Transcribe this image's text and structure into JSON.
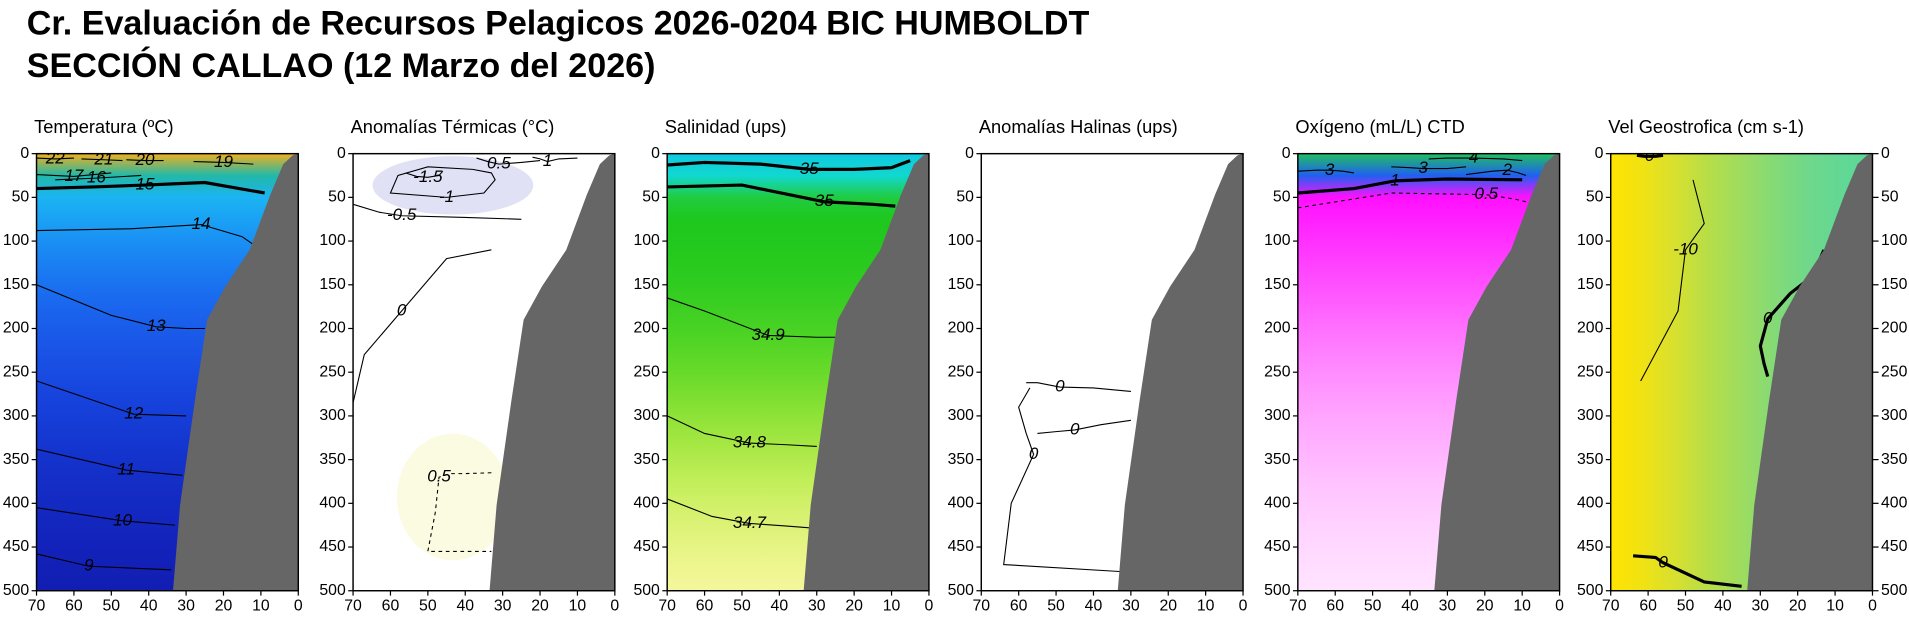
{
  "title_lines": [
    "Cr. Evaluación de Recursos Pelagicos 2026-0204 BIC HUMBOLDT",
    "SECCIÓN CALLAO (12 Marzo del 2026)"
  ],
  "bottom": {
    "x": [
      0,
      1.5,
      4,
      7.5,
      13,
      19.5,
      24.4,
      27.7,
      31.6,
      33.5,
      0
    ],
    "y": [
      0,
      2,
      12,
      47,
      110,
      152,
      190,
      284,
      402,
      500,
      500
    ]
  },
  "chart_data": [
    {
      "type": "contour",
      "title": "Temperatura (ºC)",
      "xlim": [
        70,
        0
      ],
      "ylim": [
        500,
        0
      ],
      "xticks": [
        70,
        60,
        50,
        40,
        30,
        20,
        10,
        0
      ],
      "yticks": [
        0,
        50,
        100,
        150,
        200,
        250,
        300,
        350,
        400,
        450,
        500
      ],
      "gradient": "vertical",
      "colors": [
        "#f2b01e",
        "#22b8a8",
        "#1cb4f2",
        "#1aa2f4",
        "#1a90f4",
        "#1a80f2",
        "#1a72f0",
        "#1a66ee",
        "#1a5cea",
        "#1a54e6",
        "#184ce2",
        "#1744de",
        "#163ed8",
        "#1538d2",
        "#1432cc",
        "#142ec6",
        "#132ac2",
        "#1326be",
        "#1222ba",
        "#1220b6",
        "#121eb2"
      ],
      "contours": [
        {
          "level": 22,
          "x": [
            70,
            65,
            60
          ],
          "y": [
            5,
            6,
            5
          ]
        },
        {
          "level": 21,
          "x": [
            58,
            52,
            47
          ],
          "y": [
            6,
            7,
            8
          ]
        },
        {
          "level": 20,
          "x": [
            46,
            41,
            36
          ],
          "y": [
            7,
            8,
            8
          ]
        },
        {
          "level": 19,
          "x": [
            28,
            20,
            12
          ],
          "y": [
            9,
            10,
            12
          ]
        },
        {
          "level": 17,
          "x": [
            70,
            60,
            50
          ],
          "y": [
            24,
            26,
            22
          ]
        },
        {
          "level": 16,
          "x": [
            65,
            54,
            42
          ],
          "y": [
            30,
            28,
            25
          ]
        },
        {
          "level": 15,
          "thick": true,
          "x": [
            70,
            55,
            41,
            25,
            9
          ],
          "y": [
            40,
            38,
            36,
            33,
            45
          ]
        },
        {
          "level": 14,
          "x": [
            70,
            45,
            26,
            15,
            11
          ],
          "y": [
            88,
            86,
            81,
            95,
            107
          ]
        },
        {
          "level": 13,
          "x": [
            70,
            50,
            38,
            30,
            25
          ],
          "y": [
            150,
            185,
            198,
            200,
            200
          ]
        },
        {
          "level": 12,
          "x": [
            70,
            44,
            30
          ],
          "y": [
            260,
            298,
            300
          ]
        },
        {
          "level": 11,
          "x": [
            70,
            46,
            31
          ],
          "y": [
            338,
            362,
            368
          ]
        },
        {
          "level": 10,
          "x": [
            70,
            47,
            33
          ],
          "y": [
            405,
            420,
            425
          ]
        },
        {
          "level": 9,
          "x": [
            70,
            56,
            34
          ],
          "y": [
            458,
            472,
            476
          ]
        }
      ]
    },
    {
      "type": "contour",
      "title": "Anomalías Térmicas (°C)",
      "xlim": [
        70,
        0
      ],
      "ylim": [
        500,
        0
      ],
      "xticks": [
        70,
        60,
        50,
        40,
        30,
        20,
        10,
        0
      ],
      "yticks": [
        0,
        50,
        100,
        150,
        200,
        250,
        300,
        350,
        400,
        450,
        500
      ],
      "gradient": "vertical",
      "colors": [
        "#ffffff"
      ],
      "contours": [
        {
          "level": 0,
          "x": [
            70,
            67,
            57,
            45,
            33
          ],
          "y": [
            285,
            230,
            180,
            120,
            110
          ]
        },
        {
          "level": -0.5,
          "x": [
            70,
            63,
            57,
            40,
            25
          ],
          "y": [
            58,
            67,
            71,
            73,
            75
          ]
        },
        {
          "level": -1,
          "x": [
            38,
            50,
            58,
            60,
            45,
            35,
            32,
            33,
            38
          ],
          "y": [
            18,
            15,
            25,
            45,
            50,
            45,
            30,
            22,
            18
          ]
        },
        {
          "level": -1.5,
          "x": [
            56,
            53,
            50,
            47,
            46
          ],
          "y": [
            22,
            26,
            27,
            25,
            20
          ]
        },
        {
          "level": 0.5,
          "x": [
            37,
            34,
            31,
            25,
            20
          ],
          "y": [
            5,
            9,
            12,
            10,
            8
          ]
        },
        {
          "level": 1,
          "x": [
            22,
            20,
            18,
            15,
            10
          ],
          "y": [
            4,
            6,
            9,
            6,
            5
          ]
        },
        {
          "level": 0.5,
          "dash": true,
          "x": [
            33,
            40,
            44,
            47,
            48,
            50,
            33
          ],
          "y": [
            365,
            366,
            366,
            370,
            410,
            455,
            455
          ]
        }
      ]
    },
    {
      "type": "contour",
      "title": "Salinidad (ups)",
      "xlim": [
        70,
        0
      ],
      "ylim": [
        500,
        0
      ],
      "xticks": [
        70,
        60,
        50,
        40,
        30,
        20,
        10,
        0
      ],
      "yticks": [
        0,
        50,
        100,
        150,
        200,
        250,
        300,
        350,
        400,
        450,
        500
      ],
      "gradient": "vertical",
      "colors": [
        "#10c8e0",
        "#10d8d0",
        "#20cc40",
        "#1ec81e",
        "#22c81e",
        "#28ca1e",
        "#30cc20",
        "#3ccf22",
        "#48d224",
        "#58d626",
        "#68da2a",
        "#7ade30",
        "#8ee238",
        "#a0e640",
        "#b2ea4c",
        "#c2ee5a",
        "#d0f068",
        "#dcf276",
        "#e6f484",
        "#eef690",
        "#f4f79c"
      ],
      "contours": [
        {
          "level": 35,
          "thick": true,
          "x": [
            70,
            60,
            45,
            32,
            20,
            10,
            5
          ],
          "y": [
            13,
            10,
            12,
            18,
            18,
            16,
            8
          ]
        },
        {
          "level": 35,
          "thick": true,
          "x": [
            70,
            50,
            28,
            15,
            9
          ],
          "y": [
            38,
            36,
            55,
            58,
            60
          ]
        },
        {
          "level": 34.9,
          "x": [
            70,
            60,
            43,
            30,
            25
          ],
          "y": [
            165,
            180,
            208,
            210,
            210
          ]
        },
        {
          "level": 34.8,
          "x": [
            70,
            60,
            48,
            38,
            30
          ],
          "y": [
            300,
            320,
            331,
            333,
            335
          ]
        },
        {
          "level": 34.7,
          "x": [
            70,
            58,
            48,
            38,
            32
          ],
          "y": [
            395,
            415,
            423,
            426,
            428
          ]
        }
      ]
    },
    {
      "type": "contour",
      "title": "Anomalías Halinas (ups)",
      "xlim": [
        70,
        0
      ],
      "ylim": [
        500,
        0
      ],
      "xticks": [
        70,
        60,
        50,
        40,
        30,
        20,
        10,
        0
      ],
      "yticks": [
        0,
        50,
        100,
        150,
        200,
        250,
        300,
        350,
        400,
        450,
        500
      ],
      "gradient": "vertical",
      "colors": [
        "#ffffff"
      ],
      "contours": [
        {
          "level": 0,
          "x": [
            57,
            60,
            58,
            56,
            62,
            64,
            33
          ],
          "y": [
            268,
            290,
            320,
            344,
            400,
            470,
            478
          ]
        },
        {
          "level": 0,
          "x": [
            30,
            40,
            49,
            55,
            58
          ],
          "y": [
            272,
            268,
            267,
            262,
            262
          ]
        },
        {
          "level": 0,
          "x": [
            30,
            38,
            45,
            50,
            55
          ],
          "y": [
            305,
            310,
            316,
            318,
            320
          ]
        }
      ]
    },
    {
      "type": "contour",
      "title": "Oxígeno (mL/L) CTD",
      "xlim": [
        70,
        0
      ],
      "ylim": [
        500,
        0
      ],
      "xticks": [
        70,
        60,
        50,
        40,
        30,
        20,
        10,
        0
      ],
      "yticks": [
        0,
        50,
        100,
        150,
        200,
        250,
        300,
        350,
        400,
        450,
        500
      ],
      "gradient": "vertical",
      "colors": [
        "#20c060",
        "#2060f0",
        "#ff10ff",
        "#ff20ff",
        "#ff30ff",
        "#ff40ff",
        "#ff50ff",
        "#ff60ff",
        "#ff70ff",
        "#ff7eff",
        "#ff8cff",
        "#ff98ff",
        "#ffa4ff",
        "#ffaeff",
        "#ffb8ff",
        "#ffc2ff",
        "#ffcaff",
        "#ffd2ff",
        "#ffd8ff",
        "#ffdeff",
        "#ffe4ff"
      ],
      "contours": [
        {
          "level": 4,
          "x": [
            35,
            30,
            23,
            15,
            10
          ],
          "y": [
            6,
            5,
            5,
            6,
            8
          ]
        },
        {
          "level": 3,
          "x": [
            70,
            65,
            61.5,
            58,
            55
          ],
          "y": [
            20,
            19,
            19,
            20,
            22
          ]
        },
        {
          "level": 3,
          "x": [
            45,
            40,
            36.5,
            30,
            25
          ],
          "y": [
            15,
            16,
            17,
            17,
            15
          ]
        },
        {
          "level": 2,
          "x": [
            25,
            18,
            14,
            11,
            9
          ],
          "y": [
            24,
            20,
            19,
            22,
            25
          ]
        },
        {
          "level": 1,
          "thick": true,
          "x": [
            70,
            55,
            44,
            30,
            10
          ],
          "y": [
            45,
            40,
            31,
            29,
            30
          ]
        },
        {
          "level": 0.5,
          "dash": true,
          "x": [
            70,
            45,
            19.6,
            12,
            9
          ],
          "y": [
            62,
            45,
            47,
            52,
            55
          ]
        }
      ]
    },
    {
      "type": "contour",
      "title": "Vel Geostrofica (cm s-1)",
      "xlim": [
        70,
        0
      ],
      "ylim": [
        500,
        0
      ],
      "xticks": [
        70,
        60,
        50,
        40,
        30,
        20,
        10,
        0
      ],
      "yticks": [
        0,
        50,
        100,
        150,
        200,
        250,
        300,
        350,
        400,
        450,
        500
      ],
      "right_axis": true,
      "gradient": "horizontal",
      "colors": [
        "#ffe400",
        "#f0e214",
        "#d6e030",
        "#b6de48",
        "#9edc60",
        "#84da76",
        "#70d88a",
        "#62d894",
        "#5cd898"
      ],
      "contours": [
        {
          "level": -10,
          "x": [
            48,
            45,
            50,
            52,
            62
          ],
          "y": [
            30,
            80,
            110,
            180,
            260
          ]
        },
        {
          "level": 0,
          "thick": true,
          "x": [
            13,
            16,
            22,
            28,
            30,
            29,
            28
          ],
          "y": [
            110,
            140,
            160,
            189,
            220,
            240,
            255
          ]
        },
        {
          "level": 0,
          "thick": true,
          "x": [
            64,
            58,
            56,
            45,
            35
          ],
          "y": [
            460,
            462,
            468,
            490,
            495
          ]
        },
        {
          "level": 0,
          "thick": true,
          "x": [
            63,
            61,
            59.6,
            58,
            56
          ],
          "y": [
            2,
            3,
            3,
            3,
            2
          ]
        }
      ]
    }
  ]
}
